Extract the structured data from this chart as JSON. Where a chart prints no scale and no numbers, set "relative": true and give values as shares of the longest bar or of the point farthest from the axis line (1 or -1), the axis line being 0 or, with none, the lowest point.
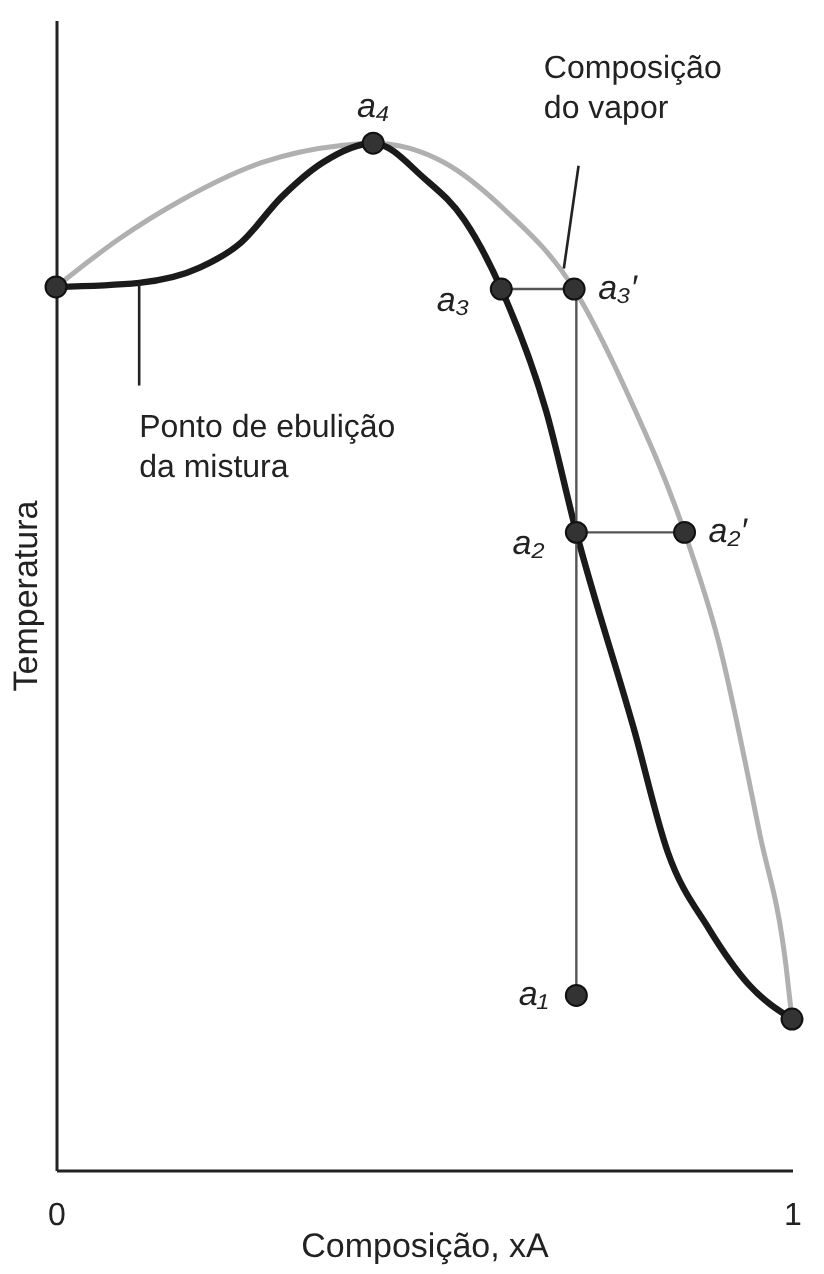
{
  "chart_data": {
    "type": "line",
    "relative": true,
    "xlabel": "Composição, xA",
    "ylabel": "Temperatura",
    "xlim": [
      0,
      1
    ],
    "xticks": [
      0,
      1
    ],
    "tick_labels": "x",
    "series": [
      {
        "color": "#b0b0b0",
        "x": [
          0,
          0.086,
          0.169,
          0.279,
          0.39,
          0.431,
          0.528,
          0.61,
          0.704,
          0.776,
          0.854,
          0.9,
          0.956,
          0.992,
          1.0
        ],
        "values": [
          0.86,
          0.907,
          0.944,
          0.981,
          0.998,
          1.0,
          0.981,
          0.935,
          0.858,
          0.757,
          0.621,
          0.515,
          0.328,
          0.198,
          0.147
        ]
      },
      {
        "color": "#1a1a1a",
        "x": [
          0,
          0.113,
          0.196,
          0.251,
          0.307,
          0.362,
          0.431,
          0.5,
          0.555,
          0.605,
          0.666,
          0.707,
          0.785,
          0.831,
          0.887,
          0.942,
          1.0
        ],
        "values": [
          0.86,
          0.864,
          0.879,
          0.903,
          0.948,
          0.981,
          1.0,
          0.966,
          0.925,
          0.858,
          0.739,
          0.621,
          0.43,
          0.31,
          0.235,
          0.18,
          0.147
        ]
      },
      {
        "type": "line",
        "color": "#555555",
        "x": [
          0.605,
          0.704
        ],
        "values": [
          0.858,
          0.858
        ]
      },
      {
        "type": "line",
        "color": "#555555",
        "x": [
          0.707,
          0.854
        ],
        "values": [
          0.621,
          0.621
        ]
      },
      {
        "type": "line",
        "color": "#555555",
        "x": [
          0.707,
          0.707
        ],
        "values": [
          0.17,
          0.858
        ]
      },
      {
        "type": "scatter",
        "marker": "circle",
        "color": "#333333",
        "x": [
          0,
          0.431,
          0.605,
          0.704,
          0.707,
          0.854,
          0.707,
          1.0
        ],
        "values": [
          0.86,
          1.0,
          0.858,
          0.858,
          0.621,
          0.621,
          0.17,
          0.147
        ]
      }
    ],
    "annotations": [
      {
        "text": "a₄",
        "x": 0.431,
        "y": 1.0
      },
      {
        "text": "a₃",
        "x": 0.605,
        "y": 0.858
      },
      {
        "text": "a₃′",
        "x": 0.704,
        "y": 0.858
      },
      {
        "text": "a₂",
        "x": 0.707,
        "y": 0.621
      },
      {
        "text": "a₂′",
        "x": 0.854,
        "y": 0.621
      },
      {
        "text": "a₁",
        "x": 0.707,
        "y": 0.17
      },
      {
        "text": "Composição\ndo vapor",
        "x": 0.69,
        "y": 0.878
      },
      {
        "text": "Ponto de ebulição\nda mistura",
        "x": 0.113,
        "y": 0.864
      }
    ]
  }
}
